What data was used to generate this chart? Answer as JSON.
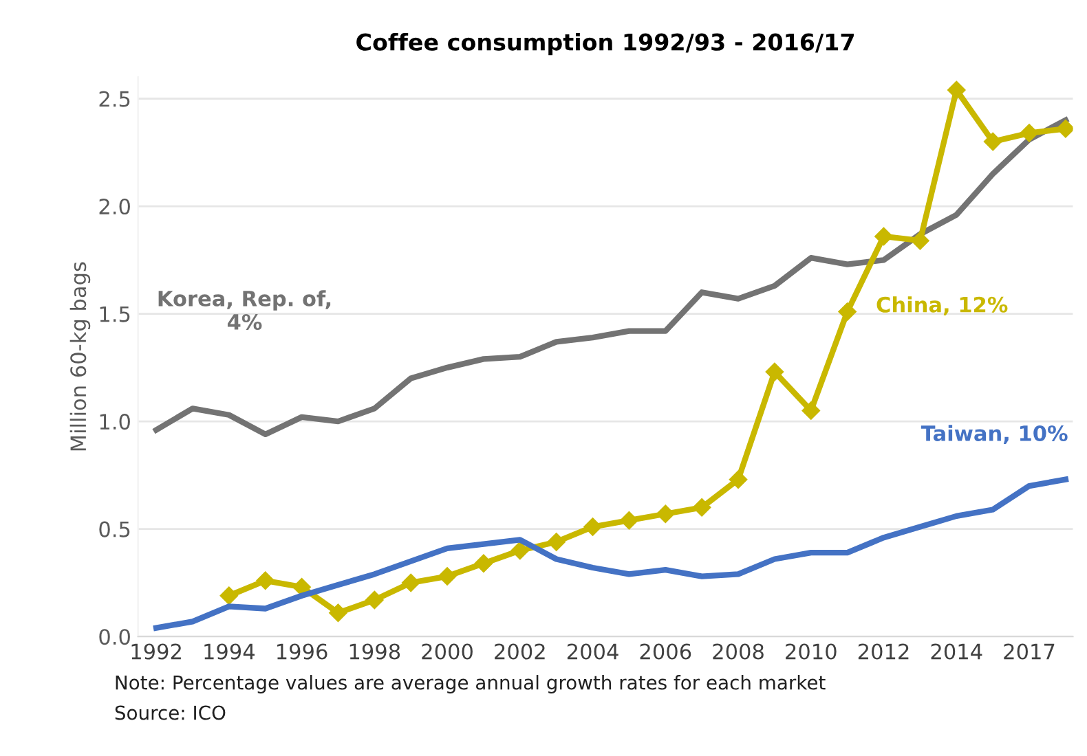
{
  "chart_data": {
    "type": "line",
    "title": "Coffee consumption 1992/93 - 2016/17",
    "ylabel": "Million 60-kg bags",
    "categories": [
      "1992",
      null,
      "1994",
      null,
      "1996",
      null,
      "1998",
      null,
      "2000",
      null,
      "2002",
      null,
      "2004",
      null,
      "2006",
      null,
      "2008",
      null,
      "2010",
      null,
      "2012",
      null,
      "2014",
      null,
      "2017",
      null
    ],
    "series": [
      {
        "name": "Korea, Rep. of,\n4%",
        "color": "#737373",
        "marker": "none",
        "values": [
          0.96,
          1.06,
          1.03,
          0.94,
          1.02,
          1.0,
          1.06,
          1.2,
          1.25,
          1.29,
          1.3,
          1.37,
          1.39,
          1.42,
          1.42,
          1.6,
          1.57,
          1.63,
          1.76,
          1.73,
          1.75,
          1.87,
          1.96,
          2.15,
          2.31,
          2.4
        ]
      },
      {
        "name": "China, 12%",
        "color": "#c9b800",
        "marker": "diamond",
        "values": [
          null,
          null,
          0.19,
          0.26,
          0.23,
          0.11,
          0.17,
          0.25,
          0.28,
          0.34,
          0.4,
          0.44,
          0.51,
          0.54,
          0.57,
          0.6,
          0.73,
          1.23,
          1.05,
          1.51,
          1.86,
          1.84,
          2.54,
          2.3,
          2.34,
          2.36
        ]
      },
      {
        "name": "Taiwan, 10%",
        "color": "#4472c4",
        "marker": "none",
        "values": [
          0.04,
          0.07,
          0.14,
          0.13,
          0.19,
          0.24,
          0.29,
          0.35,
          0.41,
          0.43,
          0.45,
          0.36,
          0.32,
          0.29,
          0.31,
          0.28,
          0.29,
          0.36,
          0.39,
          0.39,
          0.46,
          0.51,
          0.56,
          0.59,
          0.7,
          0.73
        ]
      }
    ],
    "ylim": [
      0,
      2.6
    ],
    "yticks": [
      {
        "value": 0,
        "label": "0.0"
      },
      {
        "value": 0.5,
        "label": "0.5"
      },
      {
        "value": 1.0,
        "label": "1.0"
      },
      {
        "value": 1.5,
        "label": "1.5"
      },
      {
        "value": 2.0,
        "label": "2.0"
      },
      {
        "value": 2.5,
        "label": "2.5"
      }
    ],
    "grid": "y",
    "legend": false,
    "line_style": "solid",
    "annotations": [
      "Note: Percentage values are average annual growth rates for each market",
      "Source: ICO"
    ]
  }
}
